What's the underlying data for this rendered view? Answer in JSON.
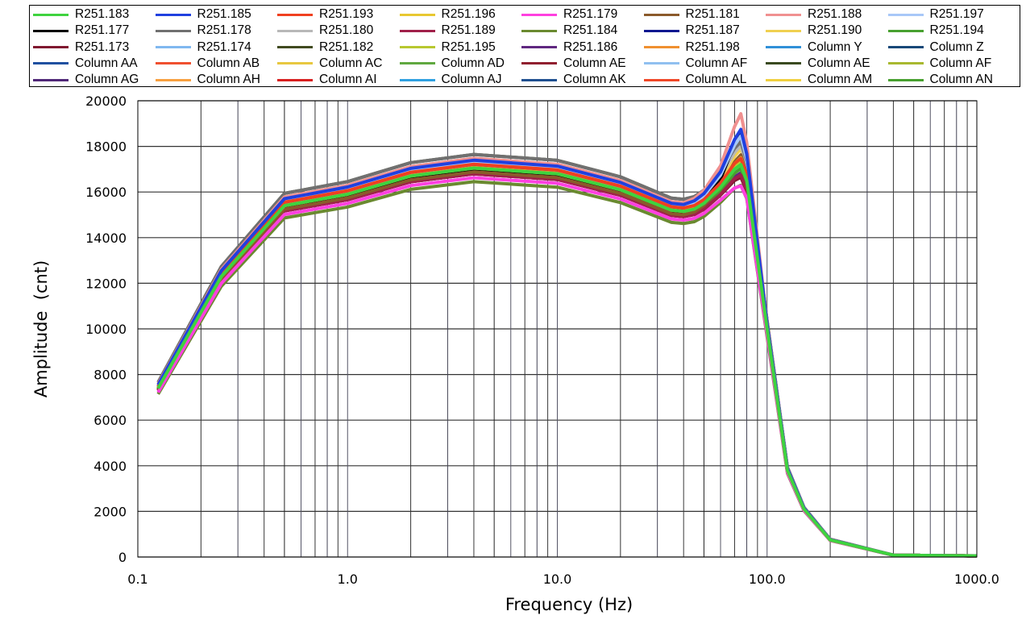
{
  "chart_data": {
    "type": "line",
    "title": "",
    "xlabel": "Frequency (Hz)",
    "ylabel": "Amplitude  (cnt)",
    "xscale": "log",
    "xlim": [
      0.1,
      1000
    ],
    "ylim": [
      0,
      20000
    ],
    "grid": true,
    "legend_position": "top",
    "x_tick_labels": [
      "0.1",
      "1.0",
      "10.0",
      "100.0",
      "1000.0"
    ],
    "x_ticks": [
      0.1,
      1,
      10,
      100,
      1000
    ],
    "y_tick_labels": [
      "0",
      "2000",
      "4000",
      "6000",
      "8000",
      "10000",
      "12000",
      "14000",
      "16000",
      "18000",
      "20000"
    ],
    "y_ticks": [
      0,
      2000,
      4000,
      6000,
      8000,
      10000,
      12000,
      14000,
      16000,
      18000,
      20000
    ],
    "x": [
      0.125,
      0.25,
      0.5,
      1,
      2,
      4,
      10,
      20,
      35,
      40,
      45,
      50,
      60,
      70,
      75,
      80,
      100,
      125,
      150,
      200,
      400,
      1000
    ],
    "base_values": [
      7400,
      12300,
      15400,
      15900,
      16700,
      17050,
      16800,
      16100,
      15200,
      15150,
      15250,
      15500,
      16200,
      17000,
      17200,
      16500,
      10000,
      3800,
      2100,
      750,
      80,
      50
    ],
    "peak_extra": [
      0,
      0,
      0,
      0,
      0,
      0,
      0,
      0,
      0,
      0,
      50,
      100,
      300,
      800,
      1000,
      700,
      0,
      0,
      0,
      0,
      0,
      0
    ],
    "series_note": "value = base_values * scale + peak_extra * peak",
    "series": [
      {
        "name": "R251.183",
        "color": "#3fd33f",
        "scale": 1.0,
        "peak": 0.0
      },
      {
        "name": "R251.185",
        "color": "#2040e0",
        "scale": 1.02,
        "peak": 1.2
      },
      {
        "name": "R251.193",
        "color": "#f04020",
        "scale": 1.01,
        "peak": 0.1
      },
      {
        "name": "R251.196",
        "color": "#e8c830",
        "scale": 1.0,
        "peak": 0.3
      },
      {
        "name": "R251.179",
        "color": "#ff40e0",
        "scale": 0.975,
        "peak": -0.5
      },
      {
        "name": "R251.181",
        "color": "#8b5a2b",
        "scale": 0.99,
        "peak": 0.6
      },
      {
        "name": "R251.188",
        "color": "#f09090",
        "scale": 1.025,
        "peak": 1.8
      },
      {
        "name": "R251.197",
        "color": "#a8c8f8",
        "scale": 1.015,
        "peak": 1.0
      },
      {
        "name": "R251.177",
        "color": "#000000",
        "scale": 0.995,
        "peak": 1.5
      },
      {
        "name": "R251.178",
        "color": "#707070",
        "scale": 1.035,
        "peak": 0.4
      },
      {
        "name": "R251.180",
        "color": "#b8b8b8",
        "scale": 1.02,
        "peak": 0.5
      },
      {
        "name": "R251.189",
        "color": "#a0204a",
        "scale": 0.985,
        "peak": -0.2
      },
      {
        "name": "R251.184",
        "color": "#6a8a30",
        "scale": 0.965,
        "peak": -0.3
      },
      {
        "name": "R251.187",
        "color": "#101890",
        "scale": 1.01,
        "peak": 0.9
      },
      {
        "name": "R251.190",
        "color": "#f0d050",
        "scale": 1.0,
        "peak": 0.7
      },
      {
        "name": "R251.194",
        "color": "#48a030",
        "scale": 0.99,
        "peak": 0.0
      },
      {
        "name": "R251.173",
        "color": "#801830",
        "scale": 0.985,
        "peak": -0.3
      },
      {
        "name": "R251.174",
        "color": "#80b8f0",
        "scale": 1.01,
        "peak": 0.8
      },
      {
        "name": "R251.182",
        "color": "#404a20",
        "scale": 1.035,
        "peak": 0.2
      },
      {
        "name": "R251.195",
        "color": "#b8c830",
        "scale": 0.995,
        "peak": 0.2
      },
      {
        "name": "R251.186",
        "color": "#602880",
        "scale": 0.985,
        "peak": -0.1
      },
      {
        "name": "R251.198",
        "color": "#f09030",
        "scale": 1.005,
        "peak": 0.3
      },
      {
        "name": "Column Y",
        "color": "#3090d8",
        "scale": 1.0,
        "peak": 0.4
      },
      {
        "name": "Column Z",
        "color": "#184878",
        "scale": 1.0,
        "peak": 0.4
      },
      {
        "name": "Column AA",
        "color": "#2050a0",
        "scale": 1.0,
        "peak": 0.4
      },
      {
        "name": "Column AB",
        "color": "#f05030",
        "scale": 1.0,
        "peak": 0.4
      },
      {
        "name": "Column AC",
        "color": "#e8c840",
        "scale": 1.0,
        "peak": 0.4
      },
      {
        "name": "Column AD",
        "color": "#60a840",
        "scale": 1.0,
        "peak": 0.4
      },
      {
        "name": "Column AE",
        "color": "#902030",
        "scale": 1.0,
        "peak": 0.4
      },
      {
        "name": "Column AF",
        "color": "#90c0f0",
        "scale": 1.0,
        "peak": 0.4
      },
      {
        "name": "Column AE",
        "color": "#3a4a20",
        "scale": 1.0,
        "peak": 0.4
      },
      {
        "name": "Column AF",
        "color": "#a8b830",
        "scale": 1.0,
        "peak": 0.4
      },
      {
        "name": "Column AG",
        "color": "#502878",
        "scale": 1.0,
        "peak": 0.4
      },
      {
        "name": "Column AH",
        "color": "#f8a040",
        "scale": 1.0,
        "peak": 0.4
      },
      {
        "name": "Column AI",
        "color": "#d82020",
        "scale": 1.0,
        "peak": 0.4
      },
      {
        "name": "Column AJ",
        "color": "#30a0e0",
        "scale": 1.0,
        "peak": 0.4
      },
      {
        "name": "Column AK",
        "color": "#205090",
        "scale": 1.0,
        "peak": 0.4
      },
      {
        "name": "Column AL",
        "color": "#f04828",
        "scale": 1.0,
        "peak": 0.4
      },
      {
        "name": "Column AM",
        "color": "#f0d040",
        "scale": 1.0,
        "peak": 0.4
      },
      {
        "name": "Column AN",
        "color": "#48a030",
        "scale": 1.0,
        "peak": 0.4
      }
    ]
  }
}
